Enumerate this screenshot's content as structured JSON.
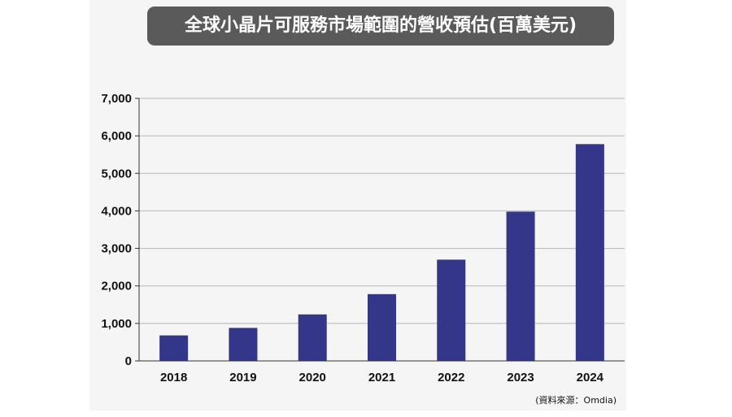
{
  "chart_data": {
    "type": "bar",
    "title": "全球小晶片可服務市場範圍的營收預估(百萬美元)",
    "categories": [
      "2018",
      "2019",
      "2020",
      "2021",
      "2022",
      "2023",
      "2024"
    ],
    "values": [
      680,
      880,
      1240,
      1780,
      2700,
      3980,
      5780
    ],
    "ylim": [
      0,
      7000
    ],
    "yticks": [
      0,
      1000,
      2000,
      3000,
      4000,
      5000,
      6000,
      7000
    ],
    "ytick_labels": [
      "0",
      "1,000",
      "2,000",
      "3,000",
      "4,000",
      "5,000",
      "6,000",
      "7,000"
    ],
    "grid": true,
    "bar_color": "#343689",
    "source": "(資料來源：Omdia)"
  }
}
